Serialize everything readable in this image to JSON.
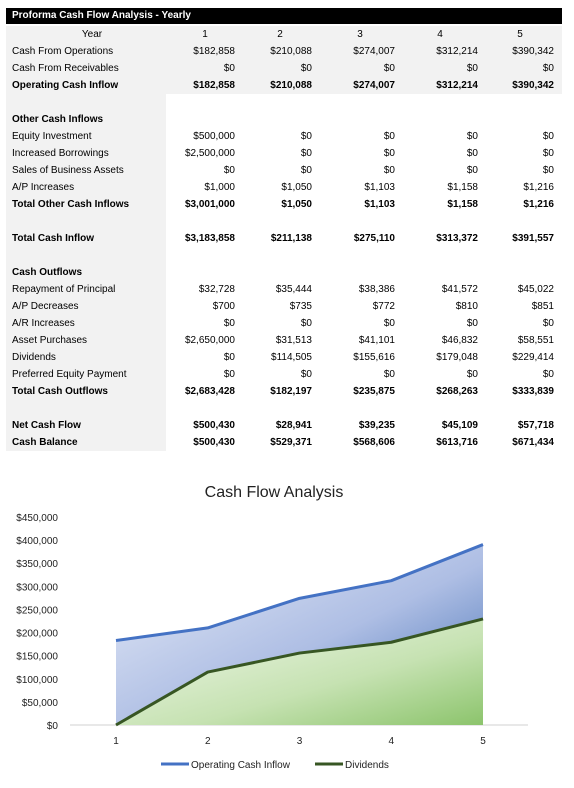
{
  "sheet": {
    "title": "Proforma Cash Flow Analysis - Yearly",
    "header": {
      "label": "Year",
      "cols": [
        "1",
        "2",
        "3",
        "4",
        "5"
      ]
    },
    "rows": [
      {
        "label": "Cash From Operations",
        "vals": [
          "$182,858",
          "$210,088",
          "$274,007",
          "$312,214",
          "$390,342"
        ],
        "bold": false
      },
      {
        "label": "Cash From Receivables",
        "vals": [
          "$0",
          "$0",
          "$0",
          "$0",
          "$0"
        ],
        "bold": false
      },
      {
        "label": "Operating Cash Inflow",
        "vals": [
          "$182,858",
          "$210,088",
          "$274,007",
          "$312,214",
          "$390,342"
        ],
        "bold": true
      },
      {
        "label": "",
        "vals": [
          "",
          "",
          "",
          "",
          ""
        ],
        "bold": false
      },
      {
        "label": "Other Cash Inflows",
        "vals": [
          "",
          "",
          "",
          "",
          ""
        ],
        "bold": true
      },
      {
        "label": "Equity Investment",
        "vals": [
          "$500,000",
          "$0",
          "$0",
          "$0",
          "$0"
        ],
        "bold": false
      },
      {
        "label": "Increased Borrowings",
        "vals": [
          "$2,500,000",
          "$0",
          "$0",
          "$0",
          "$0"
        ],
        "bold": false
      },
      {
        "label": "Sales of Business Assets",
        "vals": [
          "$0",
          "$0",
          "$0",
          "$0",
          "$0"
        ],
        "bold": false
      },
      {
        "label": "A/P Increases",
        "vals": [
          "$1,000",
          "$1,050",
          "$1,103",
          "$1,158",
          "$1,216"
        ],
        "bold": false
      },
      {
        "label": "Total Other Cash Inflows",
        "vals": [
          "$3,001,000",
          "$1,050",
          "$1,103",
          "$1,158",
          "$1,216"
        ],
        "bold": true
      },
      {
        "label": "",
        "vals": [
          "",
          "",
          "",
          "",
          ""
        ],
        "bold": false
      },
      {
        "label": "Total Cash Inflow",
        "vals": [
          "$3,183,858",
          "$211,138",
          "$275,110",
          "$313,372",
          "$391,557"
        ],
        "bold": true
      },
      {
        "label": "",
        "vals": [
          "",
          "",
          "",
          "",
          ""
        ],
        "bold": false
      },
      {
        "label": "Cash Outflows",
        "vals": [
          "",
          "",
          "",
          "",
          ""
        ],
        "bold": true
      },
      {
        "label": "Repayment of Principal",
        "vals": [
          "$32,728",
          "$35,444",
          "$38,386",
          "$41,572",
          "$45,022"
        ],
        "bold": false
      },
      {
        "label": "A/P Decreases",
        "vals": [
          "$700",
          "$735",
          "$772",
          "$810",
          "$851"
        ],
        "bold": false
      },
      {
        "label": "A/R Increases",
        "vals": [
          "$0",
          "$0",
          "$0",
          "$0",
          "$0"
        ],
        "bold": false
      },
      {
        "label": "Asset Purchases",
        "vals": [
          "$2,650,000",
          "$31,513",
          "$41,101",
          "$46,832",
          "$58,551"
        ],
        "bold": false
      },
      {
        "label": "Dividends",
        "vals": [
          "$0",
          "$114,505",
          "$155,616",
          "$179,048",
          "$229,414"
        ],
        "bold": false
      },
      {
        "label": "Preferred Equity Payment",
        "vals": [
          "$0",
          "$0",
          "$0",
          "$0",
          "$0"
        ],
        "bold": false
      },
      {
        "label": "Total Cash Outflows",
        "vals": [
          "$2,683,428",
          "$182,197",
          "$235,875",
          "$268,263",
          "$333,839"
        ],
        "bold": true
      },
      {
        "label": "",
        "vals": [
          "",
          "",
          "",
          "",
          ""
        ],
        "bold": false
      },
      {
        "label": "Net Cash Flow",
        "vals": [
          "$500,430",
          "$28,941",
          "$39,235",
          "$45,109",
          "$57,718"
        ],
        "bold": true
      },
      {
        "label": "Cash Balance",
        "vals": [
          "$500,430",
          "$529,371",
          "$568,606",
          "$613,716",
          "$671,434"
        ],
        "bold": true
      }
    ]
  },
  "chart_data": {
    "type": "area",
    "title": "Cash Flow Analysis",
    "categories": [
      "1",
      "2",
      "3",
      "4",
      "5"
    ],
    "ylim": [
      0,
      450000
    ],
    "yticks": [
      0,
      50000,
      100000,
      150000,
      200000,
      250000,
      300000,
      350000,
      400000,
      450000
    ],
    "ytick_labels": [
      "$0",
      "$50,000",
      "$100,000",
      "$150,000",
      "$200,000",
      "$250,000",
      "$300,000",
      "$350,000",
      "$400,000",
      "$450,000"
    ],
    "grid": false,
    "legend": "bottom",
    "series": [
      {
        "name": "Operating Cash Inflow",
        "values": [
          182858,
          210088,
          274007,
          312214,
          390342
        ],
        "color": "#4472c4"
      },
      {
        "name": "Dividends",
        "values": [
          0,
          114505,
          155616,
          179048,
          229414
        ],
        "color": "#375623"
      }
    ]
  }
}
